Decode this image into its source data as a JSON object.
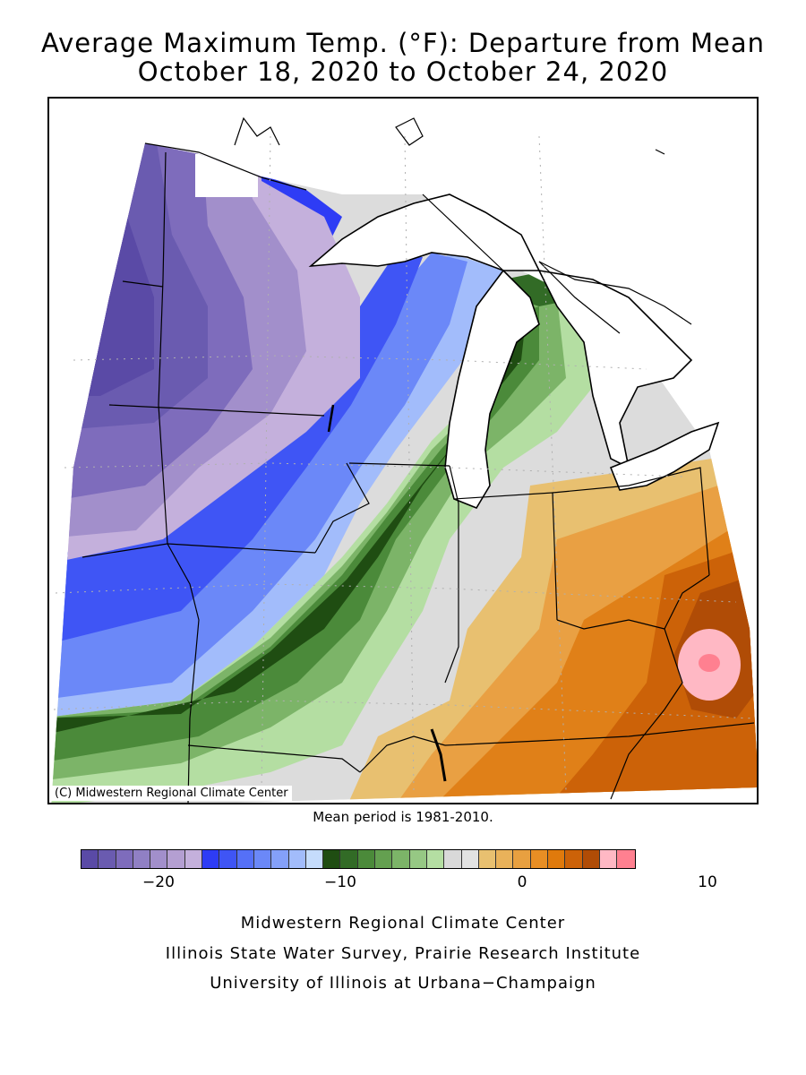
{
  "title_line1": "Average Maximum Temp. (°F): Departure from Mean",
  "title_line2": "October 18, 2020 to October 24, 2020",
  "map": {
    "copyright": "(C) Midwestern Regional Climate Center",
    "region_departures_f": {
      "northwest_minnesota": -22,
      "central_minnesota_south_dakota_east": -20,
      "wisconsin_west_iowa_north": -15,
      "nebraska_missouri_west": -14,
      "northern_illinois_lower_michigan": -6,
      "central_illinois_indiana_west": 0,
      "ohio_indiana_east": 3,
      "kentucky_ohio_south": 6,
      "west_virginia_hotspot": 10
    }
  },
  "mean_period": "Mean period is 1981-2010.",
  "legend": {
    "colors": [
      "#5a4aa6",
      "#6a5bb0",
      "#7e6cbc",
      "#9080c4",
      "#a28fcb",
      "#b49fd2",
      "#c4b0dc",
      "#2e3cf5",
      "#3f55f5",
      "#5570f7",
      "#6b88f8",
      "#84a0f9",
      "#a2bcfb",
      "#c5dcfc",
      "#1f4d12",
      "#326b26",
      "#4b8a3a",
      "#64a050",
      "#7cb468",
      "#96c884",
      "#b4dea2",
      "#d9d9d9",
      "#e2e2e2",
      "#e8c070",
      "#e9b25a",
      "#e8a040",
      "#e88e24",
      "#e07a0c",
      "#cc6208",
      "#b04c06",
      "#ffb8c4",
      "#ff8090"
    ],
    "tick_labels": [
      "−20",
      "−10",
      "0",
      "10"
    ]
  },
  "footer": {
    "line1": "Midwestern Regional Climate Center",
    "line2": "Illinois State Water Survey, Prairie Research Institute",
    "line3": "University of Illinois at Urbana−Champaign"
  }
}
